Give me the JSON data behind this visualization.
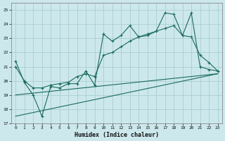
{
  "xlabel": "Humidex (Indice chaleur)",
  "xlim": [
    -0.5,
    23.5
  ],
  "ylim": [
    17,
    25.5
  ],
  "yticks": [
    17,
    18,
    19,
    20,
    21,
    22,
    23,
    24,
    25
  ],
  "xticks": [
    0,
    1,
    2,
    3,
    4,
    5,
    6,
    7,
    8,
    9,
    10,
    11,
    12,
    13,
    14,
    15,
    16,
    17,
    18,
    19,
    20,
    21,
    22,
    23
  ],
  "background_color": "#cce8ec",
  "grid_color": "#aacdd4",
  "line_color": "#1a6b5a",
  "line1_x": [
    0,
    1,
    2,
    3,
    4,
    5,
    6,
    7,
    8,
    9,
    10,
    11,
    12,
    13,
    14,
    15,
    16,
    17,
    18,
    19,
    20,
    21,
    22,
    23
  ],
  "line1_y": [
    21.4,
    19.9,
    19.0,
    17.5,
    19.6,
    19.5,
    19.8,
    19.8,
    20.7,
    19.7,
    23.3,
    22.8,
    23.2,
    23.9,
    23.1,
    23.2,
    23.5,
    24.8,
    24.7,
    23.2,
    24.8,
    21.0,
    20.8,
    20.7
  ],
  "line2_x": [
    0,
    1,
    2,
    3,
    4,
    5,
    6,
    7,
    8,
    9,
    10,
    11,
    12,
    13,
    14,
    15,
    16,
    17,
    18,
    19,
    20,
    21,
    22,
    23
  ],
  "line2_y": [
    21.0,
    20.0,
    19.5,
    19.5,
    19.7,
    19.8,
    19.9,
    20.3,
    20.5,
    20.3,
    21.8,
    22.0,
    22.4,
    22.8,
    23.1,
    23.3,
    23.5,
    23.7,
    23.9,
    23.2,
    23.1,
    21.8,
    21.3,
    20.7
  ],
  "line3_x": [
    0,
    23
  ],
  "line3_y": [
    19.0,
    20.5
  ],
  "line4_x": [
    0,
    23
  ],
  "line4_y": [
    17.5,
    20.5
  ]
}
